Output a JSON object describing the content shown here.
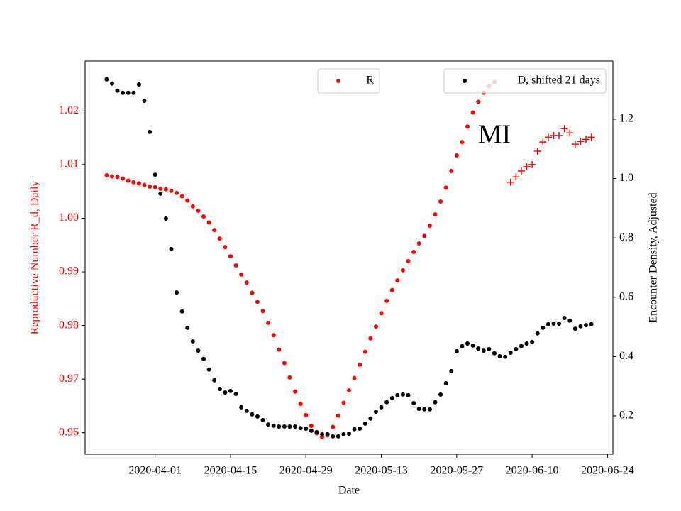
{
  "chart_data": {
    "type": "scatter",
    "annotation": "MI",
    "xlabel": "Date",
    "ylabel": "Reproductive Number R_d, Daily",
    "y2label": "Encounter Density, Adjusted",
    "xlim": [
      "2020-03-19",
      "2020-06-25"
    ],
    "xticks": [
      "2020-04-01",
      "2020-04-15",
      "2020-04-29",
      "2020-05-13",
      "2020-05-27",
      "2020-06-10",
      "2020-06-24"
    ],
    "ylim": [
      0.956,
      1.0293
    ],
    "yticks": [
      0.96,
      0.97,
      0.98,
      0.99,
      {
        "value": 1,
        "label": "1.00"
      },
      1.01,
      1.02
    ],
    "ycolor": "#ff0000",
    "y2lim": [
      0.0708,
      1.396
    ],
    "y2ticks": [
      0.2,
      0.4,
      0.6,
      0.8,
      {
        "value": 1,
        "label": "1.0"
      },
      1.2
    ],
    "series": [
      {
        "name": "R",
        "color": "#ff0000",
        "marker": "o",
        "axis": "y",
        "legend": "upper center",
        "x": [
          "2020-03-23",
          "2020-03-24",
          "2020-03-25",
          "2020-03-26",
          "2020-03-27",
          "2020-03-28",
          "2020-03-29",
          "2020-03-30",
          "2020-03-31",
          "2020-04-01",
          "2020-04-02",
          "2020-04-03",
          "2020-04-04",
          "2020-04-05",
          "2020-04-06",
          "2020-04-07",
          "2020-04-08",
          "2020-04-09",
          "2020-04-10",
          "2020-04-11",
          "2020-04-12",
          "2020-04-13",
          "2020-04-14",
          "2020-04-15",
          "2020-04-16",
          "2020-04-17",
          "2020-04-18",
          "2020-04-19",
          "2020-04-20",
          "2020-04-21",
          "2020-04-22",
          "2020-04-23",
          "2020-04-24",
          "2020-04-25",
          "2020-04-26",
          "2020-04-27",
          "2020-04-28",
          "2020-04-29",
          "2020-04-30",
          "2020-05-01",
          "2020-05-02",
          "2020-05-03",
          "2020-05-04",
          "2020-05-05",
          "2020-05-06",
          "2020-05-07",
          "2020-05-08",
          "2020-05-09",
          "2020-05-10",
          "2020-05-11",
          "2020-05-12",
          "2020-05-13",
          "2020-05-14",
          "2020-05-15",
          "2020-05-16",
          "2020-05-17",
          "2020-05-18",
          "2020-05-19",
          "2020-05-20",
          "2020-05-21",
          "2020-05-22",
          "2020-05-23",
          "2020-05-24",
          "2020-05-25",
          "2020-05-26",
          "2020-05-27",
          "2020-05-28",
          "2020-05-29",
          "2020-05-30",
          "2020-05-31",
          "2020-06-01",
          "2020-06-02",
          "2020-06-03"
        ],
        "values": [
          1.008,
          1.0078,
          1.0077,
          1.0074,
          1.007,
          1.0067,
          1.0065,
          1.0062,
          1.0059,
          1.0058,
          1.0055,
          1.0054,
          1.0051,
          1.0047,
          1.0041,
          1.0033,
          1.0022,
          1.0014,
          1.0003,
          0.9992,
          0.9978,
          0.9962,
          0.9946,
          0.9929,
          0.9912,
          0.9895,
          0.988,
          0.9861,
          0.9844,
          0.9827,
          0.9805,
          0.9782,
          0.9755,
          0.973,
          0.9703,
          0.9677,
          0.9654,
          0.9633,
          0.9613,
          0.9599,
          0.9592,
          0.9595,
          0.9611,
          0.9632,
          0.9656,
          0.9679,
          0.9702,
          0.9727,
          0.9751,
          0.9776,
          0.9798,
          0.9823,
          0.9846,
          0.9866,
          0.9884,
          0.9903,
          0.992,
          0.9937,
          0.9953,
          0.9967,
          0.9986,
          1.0007,
          1.0031,
          1.0057,
          1.0088,
          1.0117,
          1.0142,
          1.0171,
          1.0197,
          1.0217,
          1.0234,
          1.0246,
          1.0254
        ]
      },
      {
        "color": "#ff0000",
        "marker": "+",
        "axis": "y",
        "x": [
          "2020-06-06",
          "2020-06-07",
          "2020-06-08",
          "2020-06-09",
          "2020-06-10",
          "2020-06-11",
          "2020-06-12",
          "2020-06-13",
          "2020-06-14",
          "2020-06-15",
          "2020-06-16",
          "2020-06-17",
          "2020-06-18",
          "2020-06-19",
          "2020-06-20",
          "2020-06-21"
        ],
        "values": [
          1.0067,
          1.0077,
          1.0088,
          1.0096,
          1.01,
          1.0125,
          1.0142,
          1.0151,
          1.0154,
          1.0154,
          1.0167,
          1.0159,
          1.0138,
          1.0143,
          1.0147,
          1.0151
        ]
      },
      {
        "name": "D, shifted 21 days",
        "color": "#000000",
        "marker": "o",
        "axis": "y2",
        "legend": "upper right",
        "x": [
          "2020-03-23",
          "2020-03-24",
          "2020-03-25",
          "2020-03-26",
          "2020-03-27",
          "2020-03-28",
          "2020-03-29",
          "2020-03-30",
          "2020-03-31",
          "2020-04-01",
          "2020-04-02",
          "2020-04-03",
          "2020-04-04",
          "2020-04-05",
          "2020-04-06",
          "2020-04-07",
          "2020-04-08",
          "2020-04-09",
          "2020-04-10",
          "2020-04-11",
          "2020-04-12",
          "2020-04-13",
          "2020-04-14",
          "2020-04-15",
          "2020-04-16",
          "2020-04-17",
          "2020-04-18",
          "2020-04-19",
          "2020-04-20",
          "2020-04-21",
          "2020-04-22",
          "2020-04-23",
          "2020-04-24",
          "2020-04-25",
          "2020-04-26",
          "2020-04-27",
          "2020-04-28",
          "2020-04-29",
          "2020-04-30",
          "2020-05-01",
          "2020-05-02",
          "2020-05-03",
          "2020-05-04",
          "2020-05-05",
          "2020-05-06",
          "2020-05-07",
          "2020-05-08",
          "2020-05-09",
          "2020-05-10",
          "2020-05-11",
          "2020-05-12",
          "2020-05-13",
          "2020-05-14",
          "2020-05-15",
          "2020-05-16",
          "2020-05-17",
          "2020-05-18",
          "2020-05-19",
          "2020-05-20",
          "2020-05-21",
          "2020-05-22",
          "2020-05-23",
          "2020-05-24",
          "2020-05-25",
          "2020-05-26",
          "2020-05-27",
          "2020-05-28",
          "2020-05-29",
          "2020-05-30",
          "2020-05-31",
          "2020-06-01",
          "2020-06-02",
          "2020-06-03",
          "2020-06-04",
          "2020-06-05",
          "2020-06-06",
          "2020-06-07",
          "2020-06-08",
          "2020-06-09",
          "2020-06-10",
          "2020-06-11",
          "2020-06-12",
          "2020-06-13",
          "2020-06-14",
          "2020-06-15",
          "2020-06-16",
          "2020-06-17",
          "2020-06-18",
          "2020-06-19",
          "2020-06-20",
          "2020-06-21"
        ],
        "values": [
          1.334,
          1.32,
          1.296,
          1.289,
          1.289,
          1.289,
          1.317,
          1.262,
          1.157,
          1.013,
          0.949,
          0.865,
          0.762,
          0.616,
          0.552,
          0.497,
          0.451,
          0.42,
          0.392,
          0.356,
          0.32,
          0.291,
          0.279,
          0.284,
          0.274,
          0.229,
          0.217,
          0.205,
          0.198,
          0.186,
          0.171,
          0.167,
          0.164,
          0.164,
          0.164,
          0.164,
          0.159,
          0.157,
          0.15,
          0.145,
          0.138,
          0.138,
          0.131,
          0.131,
          0.138,
          0.14,
          0.155,
          0.157,
          0.174,
          0.191,
          0.214,
          0.229,
          0.246,
          0.26,
          0.27,
          0.272,
          0.27,
          0.243,
          0.224,
          0.222,
          0.222,
          0.246,
          0.272,
          0.31,
          0.351,
          0.418,
          0.435,
          0.444,
          0.437,
          0.427,
          0.42,
          0.425,
          0.411,
          0.401,
          0.399,
          0.413,
          0.425,
          0.435,
          0.444,
          0.449,
          0.478,
          0.497,
          0.509,
          0.511,
          0.511,
          0.53,
          0.521,
          0.494,
          0.502,
          0.506,
          0.509
        ]
      }
    ]
  }
}
